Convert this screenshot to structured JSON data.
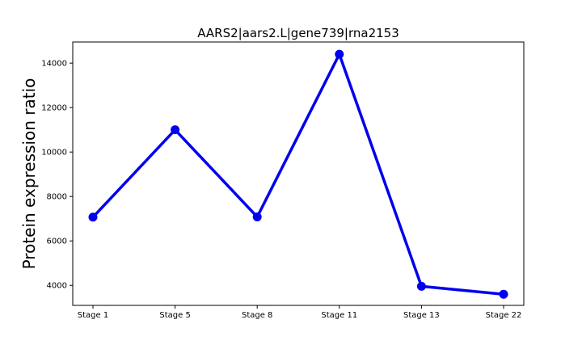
{
  "chart_data": {
    "type": "line",
    "title": "AARS2|aars2.L|gene739|rna2153",
    "xlabel": "",
    "ylabel": "Protein expression ratio",
    "categories": [
      "Stage 1",
      "Stage 5",
      "Stage 8",
      "Stage 11",
      "Stage 13",
      "Stage 22"
    ],
    "series": [
      {
        "values": [
          7070,
          11000,
          7080,
          14400,
          3960,
          3600
        ]
      }
    ],
    "ylim": [
      3100,
      14950
    ],
    "yticks": [
      4000,
      6000,
      8000,
      10000,
      12000,
      14000
    ],
    "ytick_labels": [
      "4000",
      "6000",
      "8000",
      "10000",
      "12000",
      "14000"
    ],
    "grid": false,
    "legend": false,
    "colors": {
      "line": "#0000ee",
      "marker": "#0000ee",
      "axes": "#000000"
    }
  }
}
